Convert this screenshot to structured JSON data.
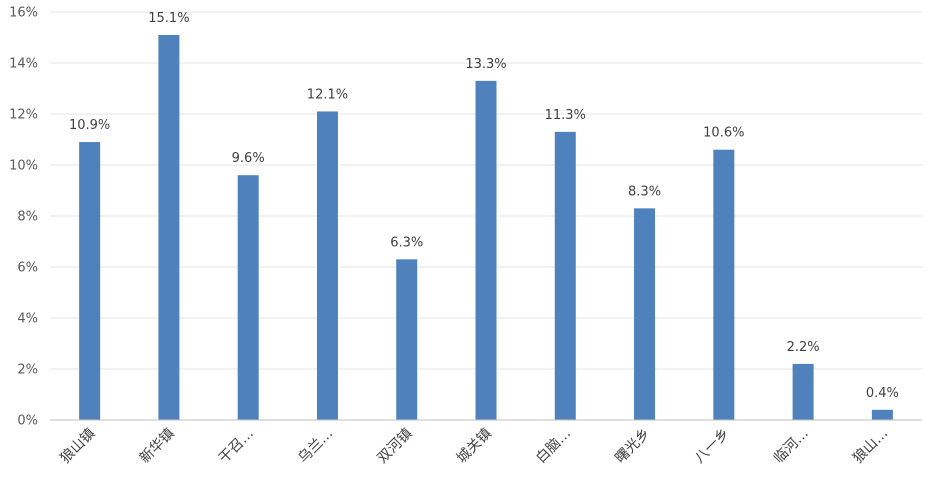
{
  "chart_data": {
    "type": "bar",
    "categories": [
      "狼山镇",
      "新华镇",
      "干召…",
      "乌兰…",
      "双河镇",
      "城关镇",
      "白脑…",
      "曙光乡",
      "八一乡",
      "临河…",
      "狼山…"
    ],
    "values": [
      10.9,
      15.1,
      9.6,
      12.1,
      6.3,
      13.3,
      11.3,
      8.3,
      10.6,
      2.2,
      0.4
    ],
    "data_labels": [
      "10.9%",
      "15.1%",
      "9.6%",
      "12.1%",
      "6.3%",
      "13.3%",
      "11.3%",
      "8.3%",
      "10.6%",
      "2.2%",
      "0.4%"
    ],
    "y_ticks": [
      "0%",
      "2%",
      "4%",
      "6%",
      "8%",
      "10%",
      "12%",
      "14%",
      "16%"
    ],
    "y_tick_values": [
      0,
      2,
      4,
      6,
      8,
      10,
      12,
      14,
      16
    ],
    "ylim": [
      0,
      16
    ],
    "grid": true,
    "legend": "none",
    "bar_color": "#4f81bd"
  }
}
